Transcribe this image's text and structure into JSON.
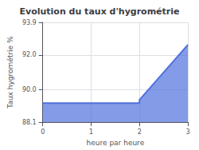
{
  "chart_data": {
    "type": "area",
    "title": "Evolution du taux d'hygrométrie",
    "xlabel": "heure par heure",
    "ylabel": "Taux hygrométrie %",
    "x": [
      0,
      2.0,
      2.0,
      3.0
    ],
    "values": [
      89.2,
      89.2,
      89.4,
      92.6
    ],
    "xlim": [
      0,
      3
    ],
    "ylim": [
      88.1,
      93.9
    ],
    "xticks": [
      0,
      1,
      2,
      3
    ],
    "yticks": [
      88.1,
      {
        "value": 90.0,
        "label": "90.0"
      },
      {
        "value": 92.0,
        "label": "92.0"
      },
      93.9
    ],
    "grid": true
  }
}
